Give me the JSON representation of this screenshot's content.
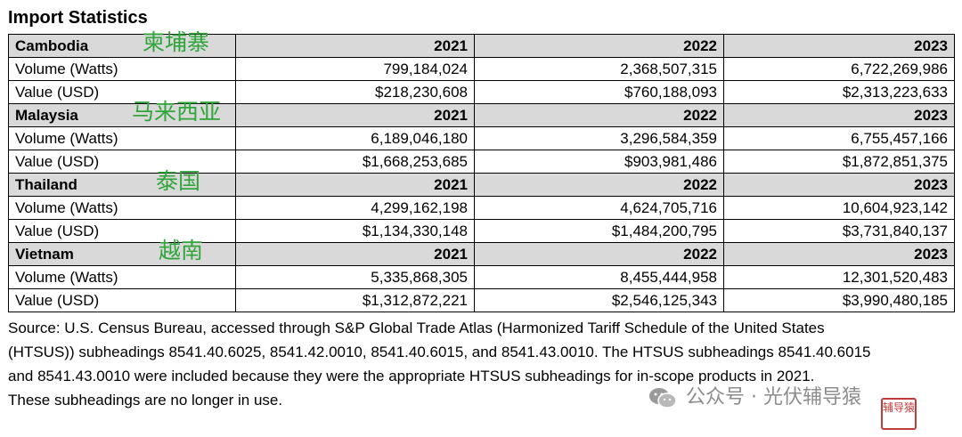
{
  "title": "Import Statistics",
  "sections": [
    {
      "country": "Cambodia",
      "country_cn": "柬埔寨",
      "years": [
        "2021",
        "2022",
        "2023"
      ],
      "rows": [
        {
          "label": "Volume (Watts)",
          "values": [
            "799,184,024",
            "2,368,507,315",
            "6,722,269,986"
          ]
        },
        {
          "label": "Value (USD)",
          "values": [
            "$218,230,608",
            "$760,188,093",
            "$2,313,223,633"
          ]
        }
      ]
    },
    {
      "country": "Malaysia",
      "country_cn": "马来西亚",
      "years": [
        "2021",
        "2022",
        "2023"
      ],
      "rows": [
        {
          "label": "Volume (Watts)",
          "values": [
            "6,189,046,180",
            "3,296,584,359",
            "6,755,457,166"
          ]
        },
        {
          "label": "Value (USD)",
          "values": [
            "$1,668,253,685",
            "$903,981,486",
            "$1,872,851,375"
          ]
        }
      ]
    },
    {
      "country": "Thailand",
      "country_cn": "泰国",
      "years": [
        "2021",
        "2022",
        "2023"
      ],
      "rows": [
        {
          "label": "Volume (Watts)",
          "values": [
            "4,299,162,198",
            "4,624,705,716",
            "10,604,923,142"
          ]
        },
        {
          "label": "Value (USD)",
          "values": [
            "$1,134,330,148",
            "$1,484,200,795",
            "$3,731,840,137"
          ]
        }
      ]
    },
    {
      "country": "Vietnam",
      "country_cn": "越南",
      "years": [
        "2021",
        "2022",
        "2023"
      ],
      "rows": [
        {
          "label": "Volume (Watts)",
          "values": [
            "5,335,868,305",
            "8,455,444,958",
            "12,301,520,483"
          ]
        },
        {
          "label": "Value (USD)",
          "values": [
            "$1,312,872,221",
            "$2,546,125,343",
            "$3,990,480,185"
          ]
        }
      ]
    }
  ],
  "source_lines": [
    "Source:  U.S. Census Bureau, accessed through S&P Global Trade Atlas (Harmonized Tariff Schedule of the United States",
    "(HTSUS)) subheadings 8541.40.6025, 8541.42.0010, 8541.40.6015, and 8541.43.0010.  The HTSUS subheadings 8541.40.6015",
    "and 8541.43.0010 were included because they were the appropriate HTSUS subheadings for in-scope products in 2021.",
    "These subheadings are no longer in use."
  ],
  "watermark": {
    "text": "公众号 · 光伏辅导猿",
    "icon": "wechat-icon",
    "seal_text": "辅导猿"
  },
  "colors": {
    "header_bg": "#d9d9d9",
    "cn_label": "#2fa53a",
    "watermark": "#8c8c8c",
    "seal": "#c23a3a"
  }
}
